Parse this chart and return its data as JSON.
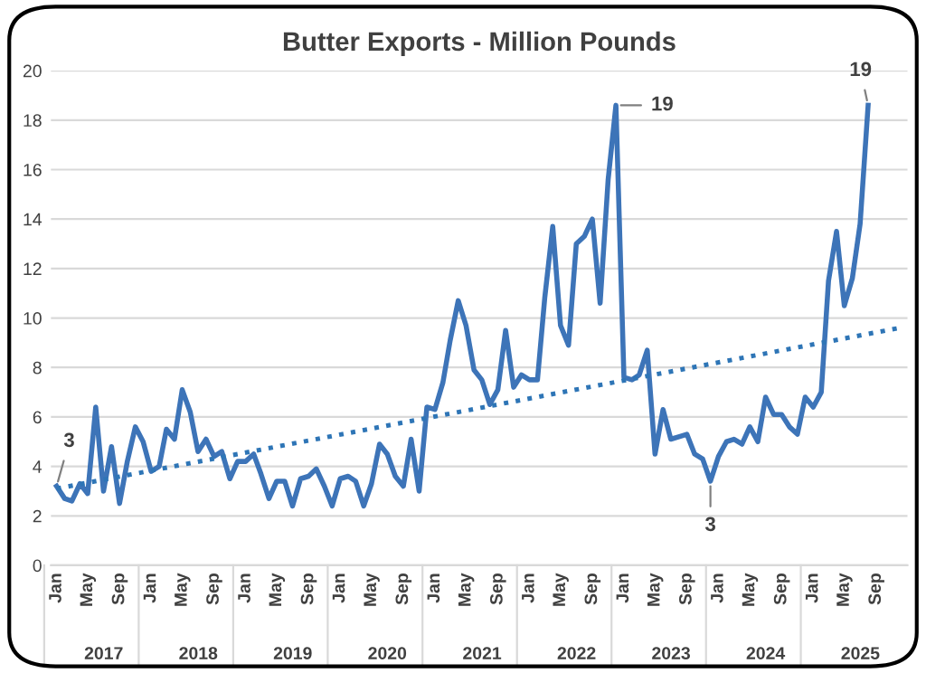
{
  "chart_data": {
    "type": "line",
    "title": "Butter Exports - Million Pounds",
    "series": [
      {
        "color": "#3d74b8",
        "line_style": "solid",
        "x": [
          "2017-01",
          "2017-02",
          "2017-03",
          "2017-04",
          "2017-05",
          "2017-06",
          "2017-07",
          "2017-08",
          "2017-09",
          "2017-10",
          "2017-11",
          "2017-12",
          "2018-01",
          "2018-02",
          "2018-03",
          "2018-04",
          "2018-05",
          "2018-06",
          "2018-07",
          "2018-08",
          "2018-09",
          "2018-10",
          "2018-11",
          "2018-12",
          "2019-01",
          "2019-02",
          "2019-03",
          "2019-04",
          "2019-05",
          "2019-06",
          "2019-07",
          "2019-08",
          "2019-09",
          "2019-10",
          "2019-11",
          "2019-12",
          "2020-01",
          "2020-02",
          "2020-03",
          "2020-04",
          "2020-05",
          "2020-06",
          "2020-07",
          "2020-08",
          "2020-09",
          "2020-10",
          "2020-11",
          "2020-12",
          "2021-01",
          "2021-02",
          "2021-03",
          "2021-04",
          "2021-05",
          "2021-06",
          "2021-07",
          "2021-08",
          "2021-09",
          "2021-10",
          "2021-11",
          "2021-12",
          "2022-01",
          "2022-02",
          "2022-03",
          "2022-04",
          "2022-05",
          "2022-06",
          "2022-07",
          "2022-08",
          "2022-09",
          "2022-10",
          "2022-11",
          "2022-12",
          "2023-01",
          "2023-02",
          "2023-03",
          "2023-04",
          "2023-05",
          "2023-06",
          "2023-07",
          "2023-08",
          "2023-09",
          "2023-10",
          "2023-11",
          "2023-12",
          "2024-01",
          "2024-02",
          "2024-03",
          "2024-04",
          "2024-05",
          "2024-06",
          "2024-07",
          "2024-08",
          "2024-09",
          "2024-10",
          "2024-11",
          "2024-12",
          "2025-01",
          "2025-02",
          "2025-03",
          "2025-04",
          "2025-05",
          "2025-06",
          "2025-07",
          "2025-08"
        ],
        "values": [
          3.2,
          2.7,
          2.6,
          3.3,
          2.9,
          6.4,
          3.0,
          4.8,
          2.5,
          4.2,
          5.6,
          5.0,
          3.8,
          4.0,
          5.5,
          5.1,
          7.1,
          6.2,
          4.6,
          5.1,
          4.4,
          4.6,
          3.5,
          4.2,
          4.2,
          4.5,
          3.7,
          2.7,
          3.4,
          3.4,
          2.4,
          3.5,
          3.6,
          3.9,
          3.2,
          2.4,
          3.5,
          3.6,
          3.4,
          2.4,
          3.3,
          4.9,
          4.5,
          3.6,
          3.2,
          5.1,
          3.0,
          6.4,
          6.3,
          7.4,
          9.1,
          10.7,
          9.7,
          7.9,
          7.5,
          6.5,
          7.1,
          9.5,
          7.2,
          7.7,
          7.5,
          7.5,
          10.8,
          13.7,
          9.7,
          8.9,
          13.0,
          13.3,
          14.0,
          10.6,
          15.6,
          18.6,
          7.6,
          7.5,
          7.7,
          8.7,
          4.5,
          6.3,
          5.1,
          5.2,
          5.3,
          4.5,
          4.3,
          3.4,
          4.4,
          5.0,
          5.1,
          4.9,
          5.6,
          5.0,
          6.8,
          6.1,
          6.1,
          5.6,
          5.3,
          6.8,
          6.4,
          7.0,
          11.5,
          13.5,
          10.5,
          11.6,
          13.8,
          18.6
        ]
      },
      {
        "color": "#2e75b6",
        "line_style": "dotted",
        "x": [
          "2017-01",
          "2025-12"
        ],
        "values": [
          3.1,
          9.6
        ]
      }
    ],
    "xlim": [
      "2016-12-10",
      "2025-12-31"
    ],
    "xticks": [
      {
        "value": "2017-01",
        "label": "Jan"
      },
      {
        "value": "2017-05",
        "label": "May"
      },
      {
        "value": "2017-09",
        "label": "Sep"
      },
      {
        "value": "2018-01",
        "label": "Jan"
      },
      {
        "value": "2018-05",
        "label": "May"
      },
      {
        "value": "2018-09",
        "label": "Sep"
      },
      {
        "value": "2019-01",
        "label": "Jan"
      },
      {
        "value": "2019-05",
        "label": "May"
      },
      {
        "value": "2019-09",
        "label": "Sep"
      },
      {
        "value": "2020-01",
        "label": "Jan"
      },
      {
        "value": "2020-05",
        "label": "May"
      },
      {
        "value": "2020-09",
        "label": "Sep"
      },
      {
        "value": "2021-01",
        "label": "Jan"
      },
      {
        "value": "2021-05",
        "label": "May"
      },
      {
        "value": "2021-09",
        "label": "Sep"
      },
      {
        "value": "2022-01",
        "label": "Jan"
      },
      {
        "value": "2022-05",
        "label": "May"
      },
      {
        "value": "2022-09",
        "label": "Sep"
      },
      {
        "value": "2023-01",
        "label": "Jan"
      },
      {
        "value": "2023-05",
        "label": "May"
      },
      {
        "value": "2023-09",
        "label": "Sep"
      },
      {
        "value": "2024-01",
        "label": "Jan"
      },
      {
        "value": "2024-05",
        "label": "May"
      },
      {
        "value": "2024-09",
        "label": "Sep"
      },
      {
        "value": "2025-01",
        "label": "Jan"
      },
      {
        "value": "2025-05",
        "label": "May"
      },
      {
        "value": "2025-09",
        "label": "Sep"
      }
    ],
    "ylim": [
      0,
      20
    ],
    "yticks": [
      0,
      2,
      4,
      6,
      8,
      10,
      12,
      14,
      16,
      18,
      20
    ],
    "grid": "y",
    "legend": false,
    "marker": "none",
    "annotations": [
      {
        "text": "3",
        "x": "2017-01",
        "y": 3.2
      },
      {
        "text": "19",
        "x": "2022-12",
        "y": 18.6
      },
      {
        "text": "3",
        "x": "2023-12",
        "y": 3.4
      },
      {
        "text": "19",
        "x": "2025-08",
        "y": 18.6
      },
      "2017",
      "2018",
      "2019",
      "2020",
      "2021",
      "2022",
      "2023",
      "2024",
      "2025"
    ]
  }
}
